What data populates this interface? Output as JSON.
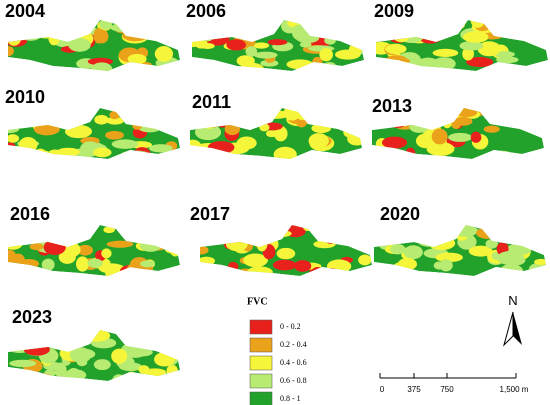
{
  "maps": [
    {
      "year": "2004"
    },
    {
      "year": "2006"
    },
    {
      "year": "2009"
    },
    {
      "year": "2010"
    },
    {
      "year": "2011"
    },
    {
      "year": "2013"
    },
    {
      "year": "2016"
    },
    {
      "year": "2017"
    },
    {
      "year": "2020"
    },
    {
      "year": "2023"
    }
  ],
  "legend": {
    "title": "FVC",
    "items": [
      {
        "label": "0 - 0.2",
        "color": "#e8211c"
      },
      {
        "label": "0.2 - 0.4",
        "color": "#e9a21a"
      },
      {
        "label": "0.4 - 0.6",
        "color": "#f5f53a"
      },
      {
        "label": "0.6 - 0.8",
        "color": "#b7eb71"
      },
      {
        "label": "0.8 - 1",
        "color": "#22a22a"
      }
    ]
  },
  "north": "N",
  "scale_bar": [
    "0",
    "375",
    "750",
    "1,500 m"
  ]
}
